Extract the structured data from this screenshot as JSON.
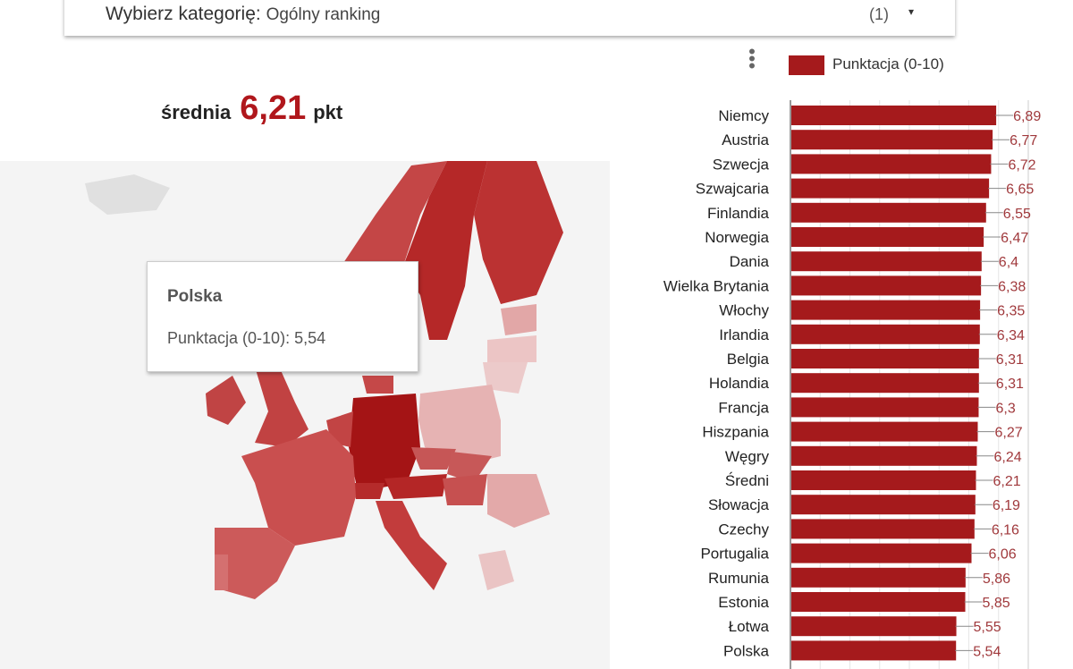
{
  "selector": {
    "label": "Wybierz kategorię:",
    "value": "Ogólny ranking",
    "count": "(1)",
    "caret": "▾"
  },
  "average": {
    "label": "średnia",
    "value": "6,21",
    "unit": "pkt"
  },
  "tooltip": {
    "title": "Polska",
    "line": "Punktacja (0-10): 5,54"
  },
  "colors": {
    "bar": "#a51a1c",
    "accent": "#b0171c"
  },
  "chart_data": {
    "type": "bar",
    "orientation": "horizontal",
    "legend": "Punktacja (0-10)",
    "legend_position": "top",
    "xlim": [
      0,
      8
    ],
    "grid": true,
    "categories": [
      "Niemcy",
      "Austria",
      "Szwecja",
      "Szwajcaria",
      "Finlandia",
      "Norwegia",
      "Dania",
      "Wielka Brytania",
      "Włochy",
      "Irlandia",
      "Belgia",
      "Holandia",
      "Francja",
      "Hiszpania",
      "Węgry",
      "Średni",
      "Słowacja",
      "Czechy",
      "Portugalia",
      "Rumunia",
      "Estonia",
      "Łotwa",
      "Polska"
    ],
    "values": [
      6.89,
      6.77,
      6.72,
      6.65,
      6.55,
      6.47,
      6.4,
      6.38,
      6.35,
      6.34,
      6.31,
      6.31,
      6.3,
      6.27,
      6.24,
      6.21,
      6.19,
      6.16,
      6.06,
      5.86,
      5.85,
      5.55,
      5.54
    ],
    "labels": [
      "6,89",
      "6,77",
      "6,72",
      "6,65",
      "6,55",
      "6,47",
      "6,4",
      "6,38",
      "6,35",
      "6,34",
      "6,31",
      "6,31",
      "6,3",
      "6,27",
      "6,24",
      "6,21",
      "6,19",
      "6,16",
      "6,06",
      "5,86",
      "5,85",
      "5,55",
      "5,54"
    ]
  }
}
